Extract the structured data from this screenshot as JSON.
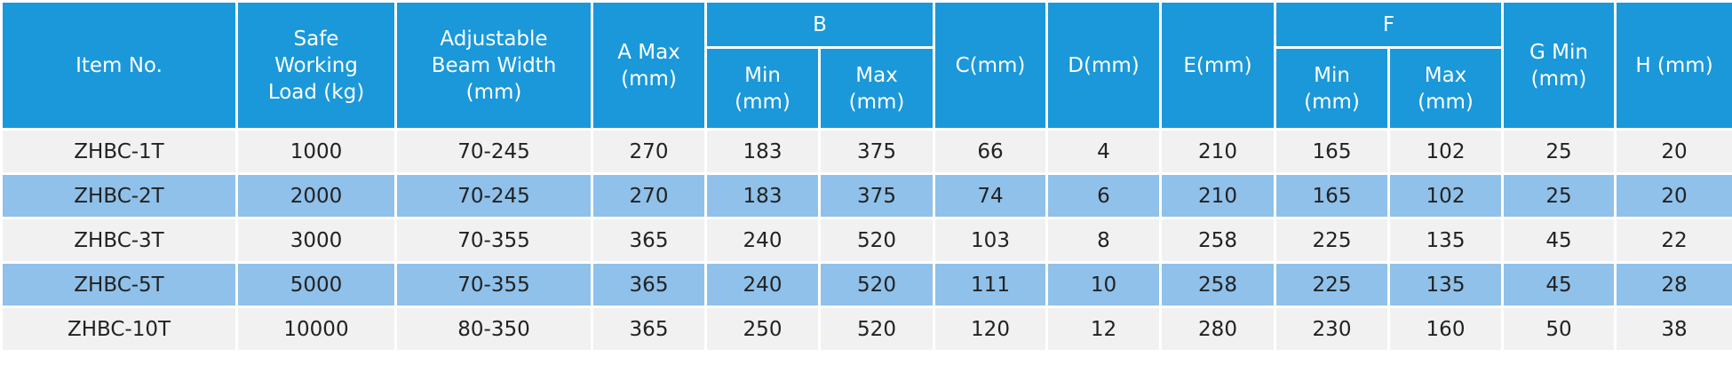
{
  "header": {
    "item_no": "Item No.",
    "load": [
      "Safe",
      "Working",
      "Load (kg)"
    ],
    "beam": [
      "Adjustable",
      "Beam Width",
      "(mm)"
    ],
    "a_max": [
      "A Max",
      "(mm)"
    ],
    "b": "B",
    "b_min": [
      "Min",
      "(mm)"
    ],
    "b_max": [
      "Max",
      "(mm)"
    ],
    "c": "C(mm)",
    "d": "D(mm)",
    "e": "E(mm)",
    "f": "F",
    "f_min": [
      "Min",
      "(mm)"
    ],
    "f_max": [
      "Max",
      "(mm)"
    ],
    "g_min": [
      "G Min",
      "(mm)"
    ],
    "h": "H (mm)"
  },
  "table": {
    "rows": [
      [
        "ZHBC-1T",
        "1000",
        "70-245",
        "270",
        "183",
        "375",
        "66",
        "4",
        "210",
        "165",
        "102",
        "25",
        "20"
      ],
      [
        "ZHBC-2T",
        "2000",
        "70-245",
        "270",
        "183",
        "375",
        "74",
        "6",
        "210",
        "165",
        "102",
        "25",
        "20"
      ],
      [
        "ZHBC-3T",
        "3000",
        "70-355",
        "365",
        "240",
        "520",
        "103",
        "8",
        "258",
        "225",
        "135",
        "45",
        "22"
      ],
      [
        "ZHBC-5T",
        "5000",
        "70-355",
        "365",
        "240",
        "520",
        "111",
        "10",
        "258",
        "225",
        "135",
        "45",
        "28"
      ],
      [
        "ZHBC-10T",
        "10000",
        "80-350",
        "365",
        "250",
        "520",
        "120",
        "12",
        "280",
        "230",
        "160",
        "50",
        "38"
      ]
    ]
  }
}
